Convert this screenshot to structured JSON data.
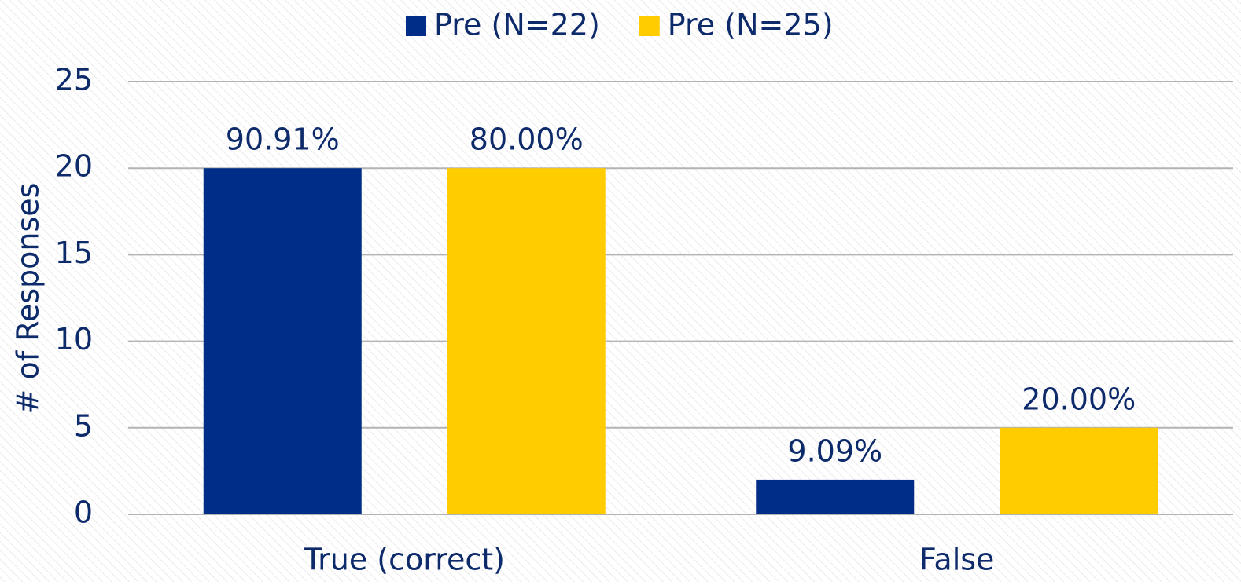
{
  "chart_data": {
    "type": "bar",
    "y_axis_label": "# of Responses",
    "categories": [
      "True (correct)",
      "False"
    ],
    "series": [
      {
        "name": "Pre (N=22)",
        "color": "#002d87",
        "values": [
          20,
          2
        ],
        "value_labels": [
          "90.91%",
          "9.09%"
        ]
      },
      {
        "name": "Pre (N=25)",
        "color": "#ffcc00",
        "values": [
          20,
          5
        ],
        "value_labels": [
          "80.00%",
          "20.00%"
        ]
      }
    ],
    "ylim": [
      0,
      25
    ],
    "yticks": [
      0,
      5,
      10,
      15,
      20,
      25
    ],
    "grid": true,
    "legend": "top"
  }
}
